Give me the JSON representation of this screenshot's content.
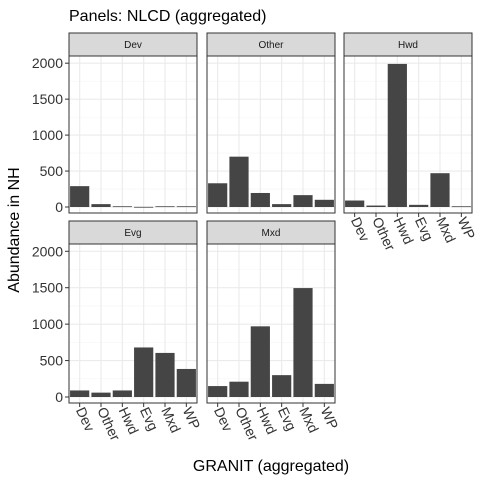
{
  "chart_data": {
    "type": "bar",
    "title": "Panels: NLCD (aggregated)",
    "xlabel": "GRANIT (aggregated)",
    "ylabel": "Abundance in NH",
    "ylim": [
      0,
      2000
    ],
    "yticks": [
      0,
      500,
      1000,
      1500,
      2000
    ],
    "categories": [
      "Dev",
      "Other",
      "Hwd",
      "Evg",
      "Mxd",
      "WP"
    ],
    "grid": true,
    "facets": [
      {
        "name": "Dev",
        "values": [
          290,
          40,
          10,
          2,
          10,
          10
        ]
      },
      {
        "name": "Other",
        "values": [
          330,
          700,
          195,
          40,
          165,
          100
        ]
      },
      {
        "name": "Hwd",
        "values": [
          90,
          20,
          1990,
          30,
          470,
          10
        ]
      },
      {
        "name": "Evg",
        "values": [
          90,
          60,
          90,
          680,
          605,
          385
        ]
      },
      {
        "name": "Mxd",
        "values": [
          150,
          210,
          970,
          300,
          1495,
          180
        ]
      }
    ],
    "colors": {
      "bar": "#454545",
      "strip_fill": "#d9d9d9",
      "panel_border": "#333333",
      "grid_major": "#ebebeb",
      "grid_minor": "#f5f5f5"
    }
  }
}
